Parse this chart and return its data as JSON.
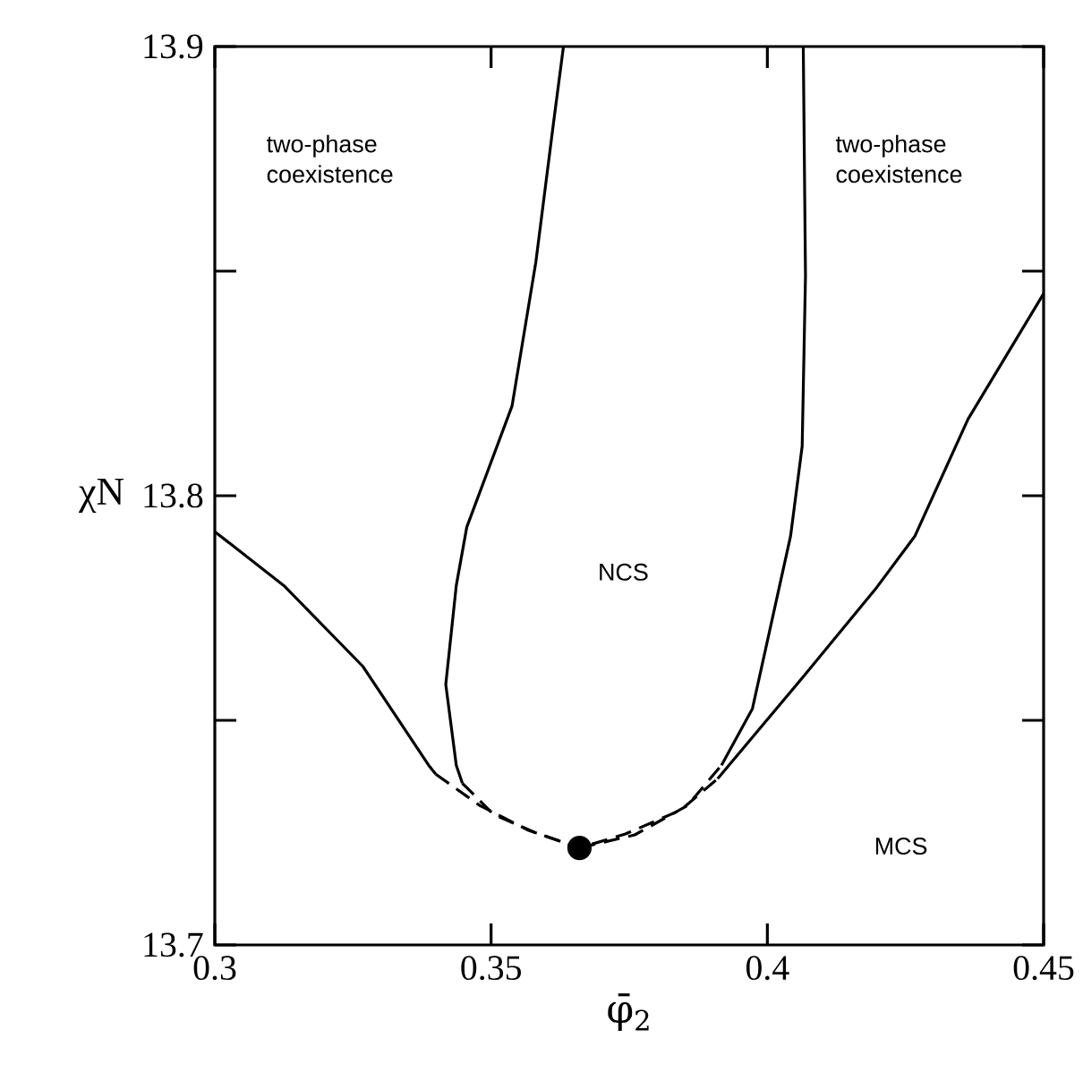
{
  "chart_data": {
    "type": "line",
    "xlabel": "φ̄$_{2}$",
    "ylabel": "χN",
    "xlim": [
      0.3,
      0.45
    ],
    "ylim": [
      13.7,
      13.9
    ],
    "xticks": [
      0.3,
      0.35,
      0.4,
      0.45
    ],
    "yticks": [
      13.7,
      {
        "value": 13.75,
        "label": null
      },
      13.8,
      {
        "value": 13.85,
        "label": null
      },
      13.9
    ],
    "grid": false,
    "marker": "none",
    "annotations": [
      "two-phase coexistence",
      "two-phase coexistence",
      "NCS",
      "MCS"
    ],
    "series": [
      {
        "color": "#000000",
        "line_style": "solid",
        "x": [
          0.3,
          0.3125,
          0.3268,
          0.3387,
          0.34
        ],
        "values": [
          13.792,
          13.78,
          13.762,
          13.74,
          13.738
        ]
      },
      {
        "color": "#000000",
        "line_style": "dashed",
        "x": [
          0.34,
          0.348,
          0.3568,
          0.366,
          0.3743,
          0.3843,
          0.391
        ],
        "values": [
          13.738,
          13.731,
          13.7255,
          13.7216,
          13.7247,
          13.73,
          13.737
        ]
      },
      {
        "color": "#000000",
        "line_style": "solid",
        "x": [
          0.391,
          0.3942,
          0.4067,
          0.4198,
          0.4267,
          0.4363,
          0.45
        ],
        "values": [
          13.737,
          13.7417,
          13.76,
          13.7796,
          13.791,
          13.817,
          13.845
        ]
      },
      {
        "color": "#000000",
        "line_style": "solid",
        "x": [
          0.3631,
          0.3613,
          0.3581,
          0.3538,
          0.3456,
          0.3437,
          0.3418,
          0.3437,
          0.3448
        ],
        "values": [
          13.9,
          13.883,
          13.852,
          13.82,
          13.793,
          13.78,
          13.758,
          13.74,
          13.736
        ]
      },
      {
        "color": "#000000",
        "line_style": "dashed",
        "x": [
          0.3448,
          0.3505,
          0.358,
          0.366
        ],
        "values": [
          13.736,
          13.729,
          13.725,
          13.7216
        ]
      },
      {
        "color": "#000000",
        "line_style": "dashed",
        "x": [
          0.366,
          0.376,
          0.3855,
          0.3917
        ],
        "values": [
          13.7216,
          13.7245,
          13.731,
          13.74
        ]
      },
      {
        "color": "#000000",
        "line_style": "solid",
        "x": [
          0.3917,
          0.3973,
          0.4042,
          0.4063,
          0.4069,
          0.4065
        ],
        "values": [
          13.74,
          13.7526,
          13.791,
          13.811,
          13.849,
          13.9
        ]
      },
      {
        "type": "scatter",
        "marker": "circle",
        "color": "#000000",
        "x": [
          0.366
        ],
        "values": [
          13.7216
        ]
      }
    ]
  }
}
